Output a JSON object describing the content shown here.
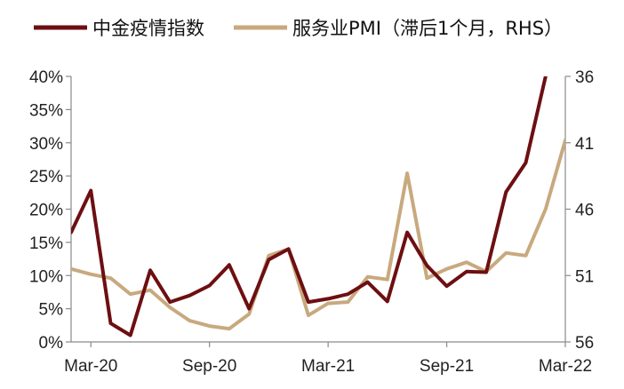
{
  "chart_data": {
    "type": "line",
    "title": "",
    "legend": {
      "placement": "top"
    },
    "grid": false,
    "x_ticks": [
      "Mar-20",
      "Sep-20",
      "Mar-21",
      "Sep-21",
      "Mar-22"
    ],
    "left_axis": {
      "min": 0,
      "max": 40,
      "ticks": [
        0,
        5,
        10,
        15,
        20,
        25,
        30,
        35,
        40
      ],
      "tick_labels": [
        "0%",
        "5%",
        "10%",
        "15%",
        "20%",
        "25%",
        "30%",
        "35%",
        "40%"
      ]
    },
    "right_axis": {
      "min": 36,
      "max": 56,
      "inverted": true,
      "ticks": [
        36,
        41,
        46,
        51,
        56
      ],
      "tick_labels": [
        "36",
        "41",
        "46",
        "51",
        "56"
      ]
    },
    "series": [
      {
        "name": "中金疫情指数",
        "axis": "left",
        "color": "#6d0f12",
        "points": [
          [
            "2020-02",
            16.5
          ],
          [
            "2020-03",
            22.8
          ],
          [
            "2020-04",
            2.8
          ],
          [
            "2020-05",
            1.0
          ],
          [
            "2020-06",
            10.8
          ],
          [
            "2020-07",
            6.0
          ],
          [
            "2020-08",
            7.0
          ],
          [
            "2020-09",
            8.5
          ],
          [
            "2020-10",
            11.6
          ],
          [
            "2020-11",
            5.0
          ],
          [
            "2020-12",
            12.4
          ],
          [
            "2021-01",
            14.0
          ],
          [
            "2021-02",
            6.0
          ],
          [
            "2021-03",
            6.5
          ],
          [
            "2021-04",
            7.2
          ],
          [
            "2021-05",
            9.0
          ],
          [
            "2021-06",
            6.1
          ],
          [
            "2021-07",
            16.5
          ],
          [
            "2021-08",
            11.5
          ],
          [
            "2021-09",
            8.4
          ],
          [
            "2021-10",
            10.6
          ],
          [
            "2021-11",
            10.5
          ],
          [
            "2021-12",
            22.6
          ],
          [
            "2022-01",
            27.0
          ],
          [
            "2022-02",
            40.0
          ]
        ]
      },
      {
        "name": "服务业PMI（滞后1个月，RHS）",
        "axis": "right",
        "color": "#c8a97e",
        "points": [
          [
            "2020-02",
            50.5
          ],
          [
            "2020-03",
            50.9
          ],
          [
            "2020-04",
            51.2
          ],
          [
            "2020-05",
            52.4
          ],
          [
            "2020-06",
            52.1
          ],
          [
            "2020-07",
            53.4
          ],
          [
            "2020-08",
            54.4
          ],
          [
            "2020-09",
            54.8
          ],
          [
            "2020-10",
            55.0
          ],
          [
            "2020-11",
            53.9
          ],
          [
            "2020-12",
            49.5
          ],
          [
            "2021-01",
            49.0
          ],
          [
            "2021-02",
            54.0
          ],
          [
            "2021-03",
            53.1
          ],
          [
            "2021-04",
            53.0
          ],
          [
            "2021-05",
            51.1
          ],
          [
            "2021-06",
            51.3
          ],
          [
            "2021-07",
            43.3
          ],
          [
            "2021-08",
            51.2
          ],
          [
            "2021-09",
            50.5
          ],
          [
            "2021-10",
            50.0
          ],
          [
            "2021-11",
            50.7
          ],
          [
            "2021-12",
            49.3
          ],
          [
            "2022-01",
            49.5
          ],
          [
            "2022-02",
            46.0
          ],
          [
            "2022-03",
            40.8
          ]
        ]
      }
    ]
  }
}
